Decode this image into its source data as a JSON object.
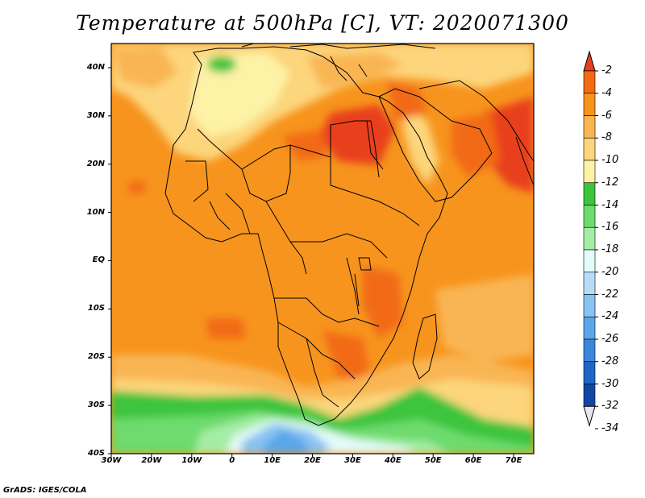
{
  "title": "Temperature at 500hPa [C], VT: 2020071300",
  "credit": "GrADS: IGES/COLA",
  "map": {
    "lon_range": [
      -30,
      75
    ],
    "lat_range": [
      -40,
      45
    ],
    "y_ticks": [
      {
        "lat": 40,
        "label": "40N"
      },
      {
        "lat": 30,
        "label": "30N"
      },
      {
        "lat": 20,
        "label": "20N"
      },
      {
        "lat": 10,
        "label": "10N"
      },
      {
        "lat": 0,
        "label": "EQ"
      },
      {
        "lat": -10,
        "label": "10S"
      },
      {
        "lat": -20,
        "label": "20S"
      },
      {
        "lat": -30,
        "label": "30S"
      },
      {
        "lat": -40,
        "label": "40S"
      }
    ],
    "x_ticks": [
      {
        "lon": -30,
        "label": "30W"
      },
      {
        "lon": -20,
        "label": "20W"
      },
      {
        "lon": -10,
        "label": "10W"
      },
      {
        "lon": 0,
        "label": "0"
      },
      {
        "lon": 10,
        "label": "10E"
      },
      {
        "lon": 20,
        "label": "20E"
      },
      {
        "lon": 30,
        "label": "30E"
      },
      {
        "lon": 40,
        "label": "40E"
      },
      {
        "lon": 50,
        "label": "50E"
      },
      {
        "lon": 60,
        "label": "60E"
      },
      {
        "lon": 70,
        "label": "70E"
      }
    ]
  },
  "colorbar": {
    "labels": [
      "-2",
      "-4",
      "-6",
      "-8",
      "-10",
      "-12",
      "-14",
      "-16",
      "-18",
      "-20",
      "-22",
      "-24",
      "-26",
      "-28",
      "-30",
      "-32",
      "-34"
    ],
    "colors": [
      "#e8401c",
      "#f26a14",
      "#f7941d",
      "#f9b552",
      "#fcd57c",
      "#fdf2a6",
      "#3cc53c",
      "#6ddb6d",
      "#a5eda5",
      "#e3fbf9",
      "#b7dcf7",
      "#89c3f1",
      "#5aa6ea",
      "#3a88dc",
      "#2166c6",
      "#1147a3",
      "#081d70"
    ]
  }
}
